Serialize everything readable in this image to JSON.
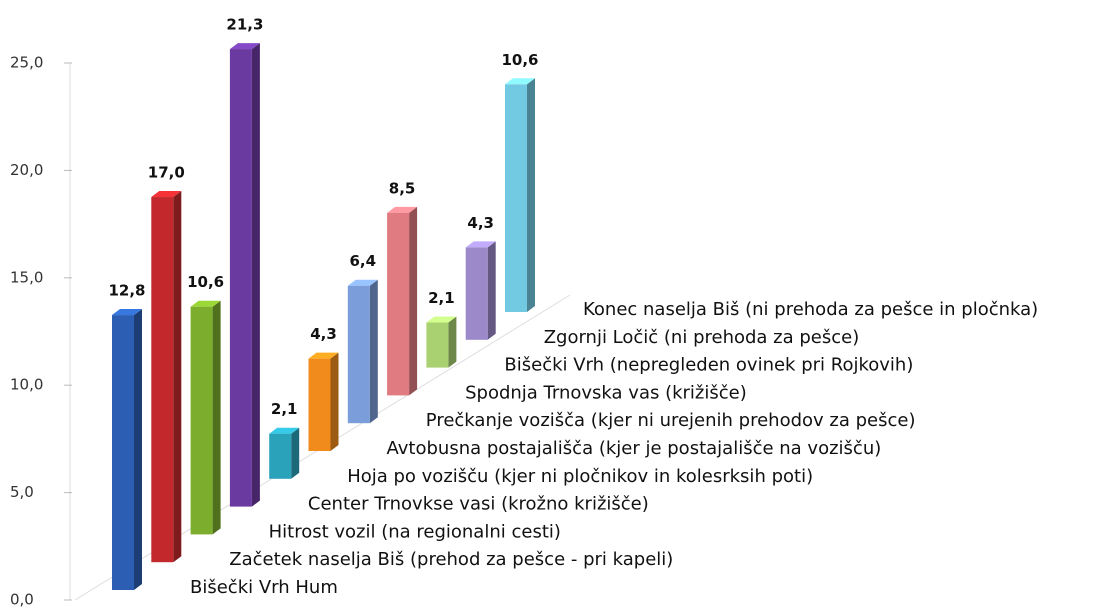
{
  "chart_data": {
    "type": "bar3d",
    "categories": [
      "Bišečki Vrh Hum",
      "Začetek naselja Biš (prehod za pešce - pri kapeli)",
      "Hitrost vozil (na regionalni cesti)",
      "Center Trnovkse vasi (krožno križišče)",
      "Hoja po vozišču (kjer ni pločnikov in kolesrksih poti)",
      "Avtobusna postajališča (kjer je postajališče na vozišču)",
      "Prečkanje vozišča  (kjer ni urejenih prehodov za pešce)",
      "Spodnja Trnovska vas (križišče)",
      "Bišečki Vrh (nepregleden ovinek pri Rojkovih)",
      "Zgornji Ločič (ni prehoda za pešce)",
      "Konec naselja Biš (ni prehoda za pešce in pločnka)"
    ],
    "values": [
      12.8,
      17.0,
      10.6,
      21.3,
      2.1,
      4.3,
      6.4,
      8.5,
      2.1,
      4.3,
      10.6
    ],
    "value_labels": [
      "12,8",
      "17,0",
      "10,6",
      "21,3",
      "2,1",
      "4,3",
      "6,4",
      "8,5",
      "2,1",
      "4,3",
      "10,6"
    ],
    "colors": [
      "#2c5fb3",
      "#c3282d",
      "#7cad2c",
      "#6b3aa0",
      "#2aa2ba",
      "#f08b1c",
      "#7b9dd9",
      "#e07b82",
      "#a9d172",
      "#9b89c9",
      "#72c9e2"
    ],
    "ylim": [
      0,
      25
    ],
    "yticks": [
      {
        "value": 0,
        "label": "0,0"
      },
      {
        "value": 5,
        "label": "5,0"
      },
      {
        "value": 10,
        "label": "10,0"
      },
      {
        "value": 15,
        "label": "15,0"
      },
      {
        "value": 20,
        "label": "20,0"
      },
      {
        "value": 25,
        "label": "25,0"
      }
    ]
  }
}
